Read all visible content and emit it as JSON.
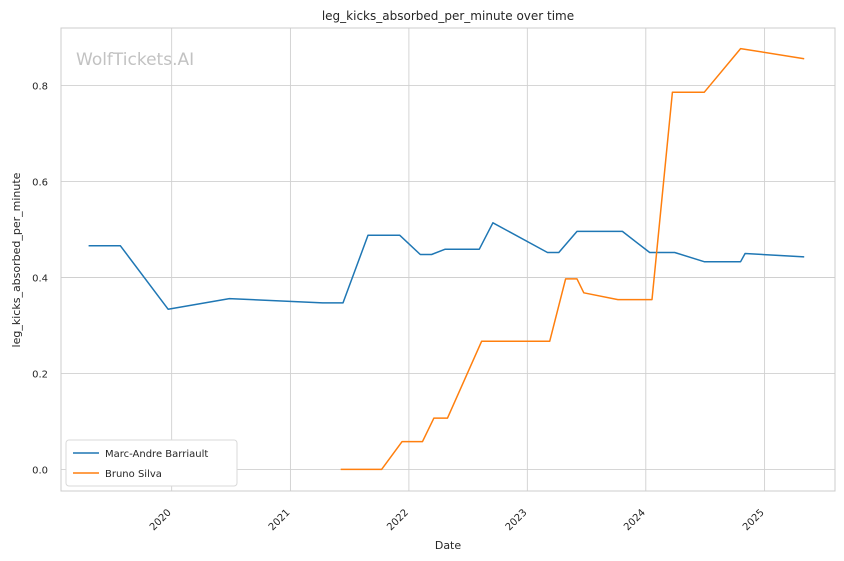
{
  "chart_data": {
    "type": "line",
    "title": "leg_kicks_absorbed_per_minute over time",
    "xlabel": "Date",
    "ylabel": "leg_kicks_absorbed_per_minute",
    "watermark": "WolfTickets.AI",
    "x_ticks": [
      "2020",
      "2021",
      "2022",
      "2023",
      "2024",
      "2025"
    ],
    "y_ticks": [
      "0.0",
      "0.2",
      "0.4",
      "0.6",
      "0.8"
    ],
    "xlim": [
      "2019-01-25",
      "2025-08-06"
    ],
    "ylim": [
      -0.045,
      0.92
    ],
    "grid": true,
    "legend_position": "lower-left",
    "series": [
      {
        "name": "Marc-Andre Barriault",
        "color": "#1f77b4",
        "points": [
          [
            "2019-04-20",
            0.466
          ],
          [
            "2019-07-27",
            0.466
          ],
          [
            "2019-12-21",
            0.334
          ],
          [
            "2020-06-27",
            0.356
          ],
          [
            "2021-04-10",
            0.347
          ],
          [
            "2021-06-12",
            0.347
          ],
          [
            "2021-08-28",
            0.488
          ],
          [
            "2021-12-04",
            0.488
          ],
          [
            "2022-02-05",
            0.448
          ],
          [
            "2022-03-12",
            0.448
          ],
          [
            "2022-04-23",
            0.459
          ],
          [
            "2022-08-06",
            0.459
          ],
          [
            "2022-09-17",
            0.514
          ],
          [
            "2023-03-04",
            0.452
          ],
          [
            "2023-04-08",
            0.452
          ],
          [
            "2023-06-03",
            0.496
          ],
          [
            "2023-10-21",
            0.496
          ],
          [
            "2024-01-13",
            0.452
          ],
          [
            "2024-03-30",
            0.452
          ],
          [
            "2024-06-29",
            0.433
          ],
          [
            "2024-10-19",
            0.433
          ],
          [
            "2024-11-02",
            0.45
          ],
          [
            "2025-05-03",
            0.443
          ]
        ]
      },
      {
        "name": "Bruno Silva",
        "color": "#ff7f0e",
        "points": [
          [
            "2021-06-05",
            0.0
          ],
          [
            "2021-10-09",
            0.0
          ],
          [
            "2021-12-11",
            0.058
          ],
          [
            "2022-02-12",
            0.058
          ],
          [
            "2022-03-19",
            0.107
          ],
          [
            "2022-04-30",
            0.107
          ],
          [
            "2022-08-13",
            0.267
          ],
          [
            "2023-03-11",
            0.267
          ],
          [
            "2023-04-29",
            0.397
          ],
          [
            "2023-06-03",
            0.397
          ],
          [
            "2023-06-24",
            0.368
          ],
          [
            "2023-10-07",
            0.354
          ],
          [
            "2024-01-20",
            0.354
          ],
          [
            "2024-03-23",
            0.786
          ],
          [
            "2024-06-29",
            0.786
          ],
          [
            "2024-10-19",
            0.877
          ],
          [
            "2025-05-03",
            0.856
          ]
        ]
      }
    ]
  }
}
